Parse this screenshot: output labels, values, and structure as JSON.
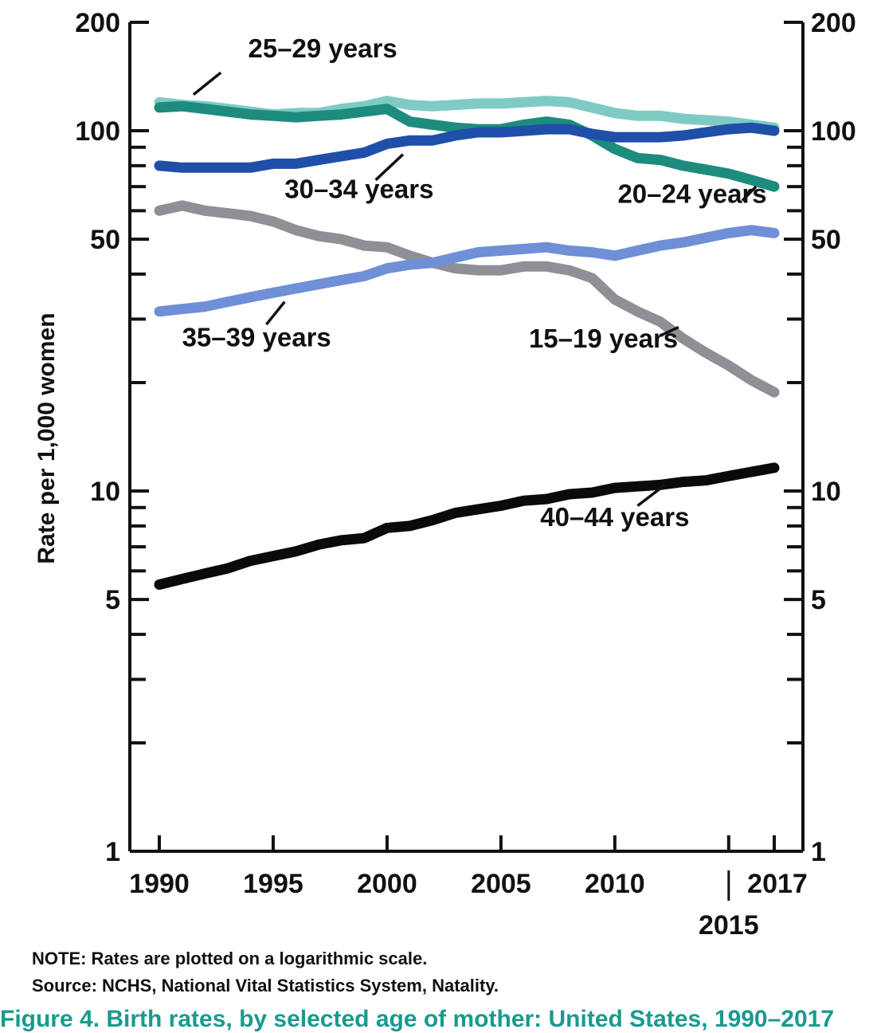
{
  "chart_data": {
    "type": "line",
    "yscale": "log",
    "ylim": [
      1,
      200
    ],
    "xlim": [
      1990,
      2017
    ],
    "ylabel": "Rate per 1,000 women",
    "yticks": [
      1,
      5,
      10,
      50,
      100,
      200
    ],
    "xticks": [
      "1990",
      "1995",
      "2000",
      "2005",
      "2010",
      "2015",
      "2017"
    ],
    "grid": false,
    "x": [
      1990,
      1991,
      1992,
      1993,
      1994,
      1995,
      1996,
      1997,
      1998,
      1999,
      2000,
      2001,
      2002,
      2003,
      2004,
      2005,
      2006,
      2007,
      2008,
      2009,
      2010,
      2011,
      2012,
      2013,
      2014,
      2015,
      2016,
      2017
    ],
    "series": [
      {
        "name": "25–29 years",
        "color": "#7fcbc4",
        "values": [
          120,
          118,
          117,
          115,
          113,
          111,
          112,
          112,
          115,
          117,
          121,
          118,
          117,
          118,
          119,
          119,
          120,
          121,
          120,
          116,
          112,
          110,
          110,
          108,
          107,
          106,
          104,
          102
        ]
      },
      {
        "name": "20–24 years",
        "color": "#1d8c7e",
        "values": [
          116,
          117,
          115,
          113,
          111,
          110,
          109,
          110,
          111,
          113,
          115,
          106,
          104,
          102,
          101,
          101,
          104,
          106,
          104,
          97,
          89,
          84,
          83,
          80,
          78,
          76,
          73,
          70
        ]
      },
      {
        "name": "30–34 years",
        "color": "#1f4fa8",
        "values": [
          80,
          79,
          79,
          79,
          79,
          81,
          81,
          83,
          85,
          87,
          92,
          94,
          94,
          97,
          99,
          99,
          100,
          101,
          101,
          98,
          96,
          96,
          96,
          97,
          99,
          101,
          102,
          100
        ]
      },
      {
        "name": "35–39 years",
        "color": "#6f8fd6",
        "values": [
          31.5,
          32,
          32.5,
          33.5,
          34.5,
          35.5,
          36.5,
          37.5,
          38.5,
          39.5,
          41.5,
          42.5,
          43,
          44.5,
          46,
          46.5,
          47,
          47.5,
          46.5,
          46,
          45,
          46.5,
          48,
          49,
          50.5,
          52,
          53,
          52
        ]
      },
      {
        "name": "15–19 years",
        "color": "#8f8f96",
        "values": [
          60,
          62,
          60,
          59,
          58,
          56,
          53,
          51,
          50,
          48,
          47.5,
          45,
          43,
          41.5,
          41,
          41,
          42,
          42,
          41,
          39,
          34,
          31.5,
          29.5,
          26.5,
          24.2,
          22.3,
          20.3,
          18.8
        ]
      },
      {
        "name": "40–44 years",
        "color": "#0a0a0a",
        "values": [
          5.5,
          5.7,
          5.9,
          6.1,
          6.4,
          6.6,
          6.8,
          7.1,
          7.3,
          7.4,
          7.9,
          8.0,
          8.3,
          8.7,
          8.9,
          9.1,
          9.4,
          9.5,
          9.8,
          9.9,
          10.2,
          10.3,
          10.4,
          10.6,
          10.7,
          11.0,
          11.3,
          11.6
        ]
      }
    ]
  },
  "notes": {
    "note": "NOTE: Rates are plotted on a logarithmic scale.",
    "source": "Source: NCHS, National Vital Statistics System, Natality.",
    "caption": "Figure 4. Birth rates, by selected age of mother: United States, 1990–2017"
  }
}
